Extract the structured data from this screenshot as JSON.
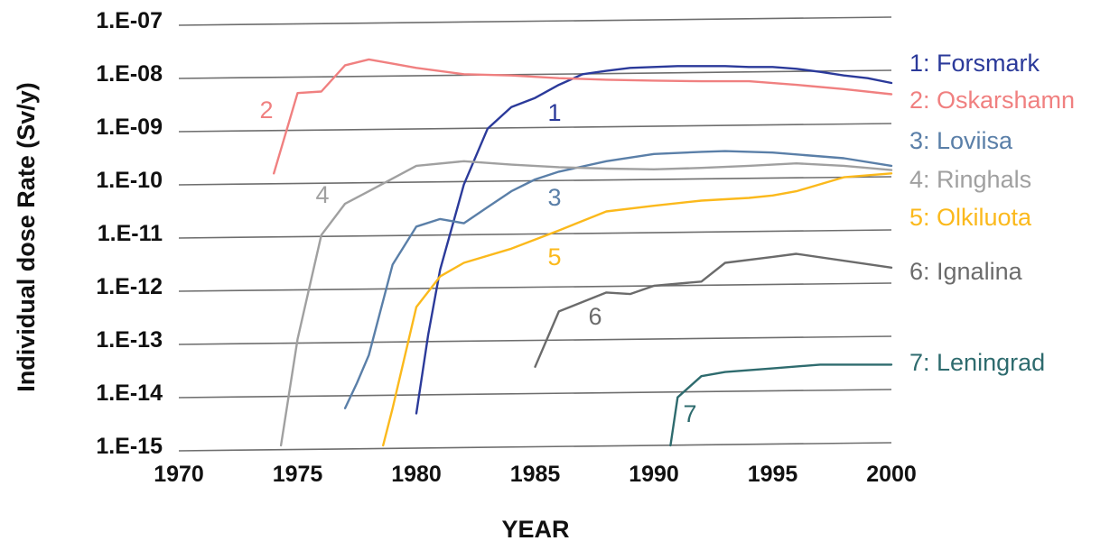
{
  "chart_data": {
    "type": "line",
    "title": "",
    "xlabel": "YEAR",
    "ylabel": "Individual dose Rate (Sv/y)",
    "xlim": [
      1970,
      2000
    ],
    "ylim": [
      1e-15,
      1e-07
    ],
    "y_scale": "log",
    "grid": true,
    "legend_placement": "right",
    "x_ticks": [
      "1970",
      "1975",
      "1980",
      "1985",
      "1990",
      "1995",
      "2000"
    ],
    "y_ticks": [
      "1.E-07",
      "1.E-08",
      "1.E-09",
      "1.E-10",
      "1.E-11",
      "1.E-12",
      "1.E-13",
      "1.E-14",
      "1.E-15"
    ],
    "series": [
      {
        "name": "1: Forsmark",
        "curve_label": "1",
        "color": "#2b3a9a",
        "x": [
          1980,
          1980.5,
          1981,
          1982,
          1983,
          1984,
          1985,
          1986,
          1987,
          1988,
          1989,
          1990,
          1991,
          1992,
          1993,
          1994,
          1995,
          1996,
          1997,
          1998,
          1999,
          2000
        ],
        "y": [
          4e-15,
          1.2e-13,
          2e-12,
          8e-11,
          9e-10,
          2.3e-09,
          3.4e-09,
          6e-09,
          9.5e-09,
          1.1e-08,
          1.25e-08,
          1.3e-08,
          1.35e-08,
          1.35e-08,
          1.35e-08,
          1.3e-08,
          1.3e-08,
          1.2e-08,
          1.05e-08,
          9e-09,
          8e-09,
          6.5e-09
        ]
      },
      {
        "name": "2: Oskarshamn",
        "curve_label": "2",
        "color": "#f08080",
        "x": [
          1974,
          1975,
          1976,
          1977,
          1978,
          1979,
          1980,
          1982,
          1984,
          1986,
          1988,
          1990,
          1992,
          1994,
          1996,
          1998,
          2000
        ],
        "y": [
          1.3e-10,
          4.2e-09,
          4.5e-09,
          1.4e-08,
          1.8e-08,
          1.5e-08,
          1.25e-08,
          9.5e-09,
          9e-09,
          8e-09,
          7.5e-09,
          7.2e-09,
          7e-09,
          7e-09,
          6e-09,
          5e-09,
          4e-09
        ]
      },
      {
        "name": "3: Loviisa",
        "curve_label": "3",
        "color": "#5a7fa8",
        "x": [
          1977,
          1977.5,
          1978,
          1979,
          1980,
          1981,
          1982,
          1983,
          1984,
          1985,
          1986,
          1988,
          1990,
          1992,
          1993,
          1995,
          1998,
          2000
        ],
        "y": [
          5e-15,
          1.5e-14,
          5e-14,
          2.5e-12,
          1.3e-11,
          1.8e-11,
          1.5e-11,
          3e-11,
          6e-11,
          1e-10,
          1.4e-10,
          2.2e-10,
          3e-10,
          3.3e-10,
          3.4e-10,
          3.2e-10,
          2.5e-10,
          1.8e-10
        ]
      },
      {
        "name": "4: Ringhals",
        "curve_label": "4",
        "color": "#a0a0a0",
        "x": [
          1974.3,
          1975,
          1976,
          1977,
          1978,
          1980,
          1982,
          1984,
          1986,
          1988,
          1990,
          1992,
          1994,
          1996,
          1998,
          2000
        ],
        "y": [
          1e-15,
          1e-13,
          9e-12,
          3.5e-11,
          6e-11,
          1.8e-10,
          2.2e-10,
          1.9e-10,
          1.7e-10,
          1.6e-10,
          1.55e-10,
          1.65e-10,
          1.8e-10,
          2e-10,
          1.8e-10,
          1.5e-10
        ]
      },
      {
        "name": "5: Olkiluota",
        "curve_label": "5",
        "color": "#fbb91c",
        "x": [
          1978.6,
          1979,
          1980,
          1981,
          1982,
          1984,
          1986,
          1988,
          1990,
          1992,
          1994,
          1995,
          1996,
          1998,
          2000
        ],
        "y": [
          1e-15,
          5e-15,
          4e-13,
          1.5e-12,
          2.7e-12,
          5e-12,
          1.1e-11,
          2.5e-11,
          3.2e-11,
          4e-11,
          4.5e-11,
          5e-11,
          6e-11,
          1.1e-10,
          1.3e-10
        ]
      },
      {
        "name": "6: Ignalina",
        "curve_label": "6",
        "color": "#6b6b6b",
        "x": [
          1985,
          1986,
          1988,
          1989,
          1990,
          1992,
          1993,
          1995,
          1996,
          2000
        ],
        "y": [
          3e-14,
          3.3e-13,
          7.5e-13,
          7e-13,
          1e-12,
          1.2e-12,
          2.7e-12,
          3.5e-12,
          4e-12,
          2.2e-12
        ]
      },
      {
        "name": "7: Leningrad",
        "curve_label": "7",
        "color": "#2e6b6e",
        "x": [
          1990.7,
          1991,
          1992,
          1993,
          1995,
          1997,
          2000
        ],
        "y": [
          1e-15,
          8e-15,
          2e-14,
          2.4e-14,
          2.8e-14,
          3.3e-14,
          3.3e-14
        ]
      }
    ]
  }
}
